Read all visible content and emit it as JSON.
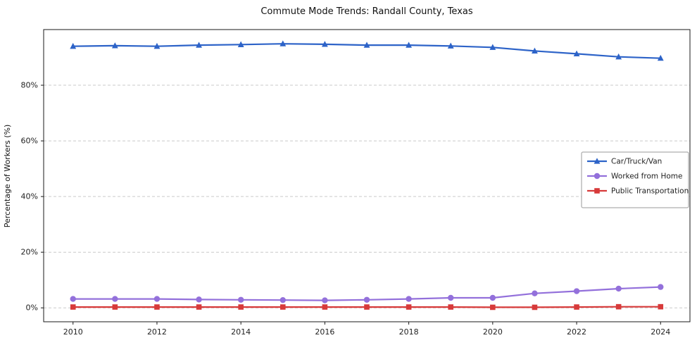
{
  "chart_data": {
    "type": "line",
    "title": "Commute Mode Trends: Randall County, Texas",
    "xlabel": "",
    "ylabel": "Percentage of Workers (%)",
    "x": [
      2010,
      2011,
      2012,
      2013,
      2014,
      2015,
      2016,
      2017,
      2018,
      2019,
      2020,
      2021,
      2022,
      2023,
      2024
    ],
    "series": [
      {
        "name": "Car/Truck/Van",
        "color": "#2d63c8",
        "marker": "triangle",
        "values": [
          94.0,
          94.2,
          94.0,
          94.4,
          94.6,
          94.9,
          94.7,
          94.4,
          94.4,
          94.1,
          93.6,
          92.3,
          91.3,
          90.2,
          89.7
        ]
      },
      {
        "name": "Worked from Home",
        "color": "#9370db",
        "marker": "circle",
        "values": [
          3.2,
          3.2,
          3.2,
          3.0,
          2.9,
          2.8,
          2.7,
          2.9,
          3.2,
          3.6,
          3.6,
          5.2,
          6.0,
          6.9,
          7.5
        ]
      },
      {
        "name": "Public Transportation",
        "color": "#d73a3a",
        "marker": "square",
        "values": [
          0.3,
          0.3,
          0.3,
          0.3,
          0.3,
          0.3,
          0.3,
          0.3,
          0.3,
          0.3,
          0.2,
          0.2,
          0.3,
          0.4,
          0.4
        ]
      }
    ],
    "xticks": [
      2010,
      2012,
      2014,
      2016,
      2018,
      2020,
      2022,
      2024
    ],
    "yticks": [
      0,
      20,
      40,
      60,
      80
    ],
    "ytick_suffix": "%",
    "xlim": [
      2009.3,
      2024.7
    ],
    "ylim": [
      -5,
      100
    ],
    "grid": "horizontal-dashed",
    "grid_color": "#c9c9c9",
    "legend_position": "right-center",
    "background": "#ffffff"
  }
}
